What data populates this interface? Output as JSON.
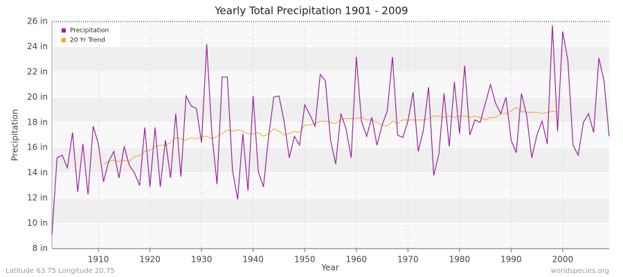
{
  "chart_data": {
    "type": "line",
    "title": "Yearly Total Precipitation 1901 - 2009",
    "x_label": "Year",
    "y_label": "Precipitation",
    "footer_left": "Latitude 63.75 Longitude 20.75",
    "footer_right": "worldspecies.org",
    "legend_position": "upper-left",
    "grid": true,
    "x": [
      1901,
      1902,
      1903,
      1904,
      1905,
      1906,
      1907,
      1908,
      1909,
      1910,
      1911,
      1912,
      1913,
      1914,
      1915,
      1916,
      1917,
      1918,
      1919,
      1920,
      1921,
      1922,
      1923,
      1924,
      1925,
      1926,
      1927,
      1928,
      1929,
      1930,
      1931,
      1932,
      1933,
      1934,
      1935,
      1936,
      1937,
      1938,
      1939,
      1940,
      1941,
      1942,
      1943,
      1944,
      1945,
      1946,
      1947,
      1948,
      1949,
      1950,
      1951,
      1952,
      1953,
      1954,
      1955,
      1956,
      1957,
      1958,
      1959,
      1960,
      1961,
      1962,
      1963,
      1964,
      1965,
      1966,
      1967,
      1968,
      1969,
      1970,
      1971,
      1972,
      1973,
      1974,
      1975,
      1976,
      1977,
      1978,
      1979,
      1980,
      1981,
      1982,
      1983,
      1984,
      1985,
      1986,
      1987,
      1988,
      1989,
      1990,
      1991,
      1992,
      1993,
      1994,
      1995,
      1996,
      1997,
      1998,
      1999,
      2000,
      2001,
      2002,
      2003,
      2004,
      2005,
      2006,
      2007,
      2008,
      2009
    ],
    "series": [
      {
        "name": "Precipitation",
        "color": "#9b1fa0",
        "values": [
          9.1,
          15.2,
          15.4,
          14.4,
          17.2,
          12.5,
          16.3,
          12.3,
          17.7,
          16.3,
          13.3,
          14.9,
          15.7,
          13.6,
          16.1,
          14.6,
          14.0,
          13.0,
          17.6,
          12.9,
          17.6,
          12.9,
          16.6,
          13.6,
          18.7,
          13.7,
          20.1,
          19.3,
          19.1,
          16.4,
          24.2,
          17.1,
          13.1,
          21.6,
          21.6,
          14.2,
          11.9,
          17.1,
          12.6,
          20.1,
          14.1,
          12.9,
          16.9,
          20.0,
          20.1,
          18.1,
          15.2,
          16.9,
          16.2,
          19.4,
          18.6,
          17.7,
          21.8,
          21.3,
          16.6,
          14.7,
          18.7,
          17.5,
          15.2,
          23.2,
          18.1,
          16.9,
          18.4,
          16.2,
          17.8,
          18.9,
          23.2,
          17.0,
          16.8,
          18.1,
          20.4,
          15.7,
          17.4,
          20.8,
          13.8,
          15.5,
          20.3,
          16.1,
          21.2,
          17.1,
          22.5,
          17.0,
          18.2,
          18.0,
          19.5,
          21.0,
          19.5,
          18.7,
          20.0,
          16.6,
          15.6,
          20.3,
          18.6,
          15.2,
          17.0,
          18.1,
          16.3,
          25.7,
          17.3,
          25.2,
          22.9,
          16.2,
          15.4,
          18.0,
          18.7,
          17.2,
          23.1,
          21.3,
          16.9
        ]
      },
      {
        "name": "20 Yr Trend",
        "color": "#f5a623",
        "values": [
          null,
          null,
          null,
          null,
          null,
          null,
          null,
          null,
          null,
          null,
          14.7,
          14.9,
          15.0,
          14.9,
          15.0,
          14.9,
          15.3,
          15.4,
          15.7,
          15.8,
          16.1,
          16.2,
          16.2,
          16.4,
          16.8,
          16.7,
          16.6,
          16.8,
          16.7,
          16.9,
          16.9,
          16.7,
          16.9,
          17.1,
          17.4,
          17.3,
          17.4,
          17.3,
          17.1,
          17.1,
          17.2,
          16.9,
          17.1,
          17.5,
          17.3,
          17.0,
          17.1,
          17.3,
          17.2,
          17.8,
          17.8,
          17.9,
          18.1,
          18.1,
          18.0,
          17.9,
          18.2,
          18.3,
          18.3,
          18.3,
          18.4,
          18.2,
          18.2,
          18.0,
          17.8,
          17.7,
          18.1,
          17.9,
          18.2,
          18.2,
          18.2,
          18.2,
          18.2,
          18.3,
          18.5,
          18.5,
          18.4,
          18.5,
          18.4,
          18.5,
          18.5,
          18.4,
          18.5,
          18.4,
          18.2,
          18.4,
          18.4,
          18.7,
          18.7,
          18.9,
          19.2,
          18.9,
          18.8,
          18.8,
          18.8,
          18.7,
          18.8,
          18.9,
          18.8,
          null,
          null,
          null,
          null,
          null,
          null,
          null,
          null,
          null,
          null
        ]
      }
    ],
    "xlim": [
      1901,
      2009
    ],
    "xticks": [
      1910,
      1920,
      1930,
      1940,
      1950,
      1960,
      1970,
      1980,
      1990,
      2000
    ],
    "ylim": [
      8,
      26
    ],
    "yticks": [
      {
        "value": 8,
        "label": "8 in"
      },
      {
        "value": 10,
        "label": "10 in"
      },
      {
        "value": 12,
        "label": "12 in"
      },
      {
        "value": 14,
        "label": "14 in"
      },
      {
        "value": 16,
        "label": "16 in"
      },
      {
        "value": 18,
        "label": "18 in"
      },
      {
        "value": 20,
        "label": "20 in"
      },
      {
        "value": 22,
        "label": "22 in"
      },
      {
        "value": 24,
        "label": "24 in"
      },
      {
        "value": 26,
        "label": "26 in"
      }
    ]
  }
}
